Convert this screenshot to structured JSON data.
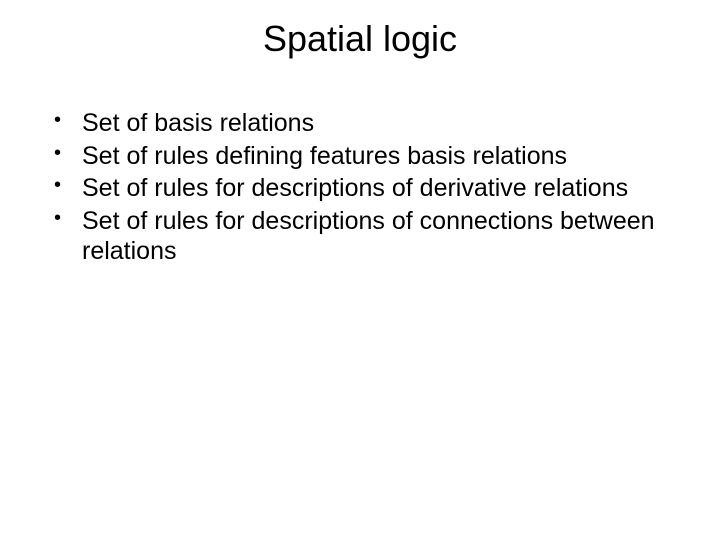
{
  "slide": {
    "title": "Spatial logic",
    "bullets": [
      "Set of basis relations",
      "Set of rules defining features basis relations",
      "Set of rules for descriptions of derivative relations",
      "Set of rules for descriptions of connections between relations"
    ],
    "styling": {
      "background_color": "#ffffff",
      "text_color": "#000000",
      "title_fontsize": 36,
      "title_align": "center",
      "bullet_fontsize": 25,
      "font_family": "Arial",
      "bullet_marker": "•"
    }
  }
}
